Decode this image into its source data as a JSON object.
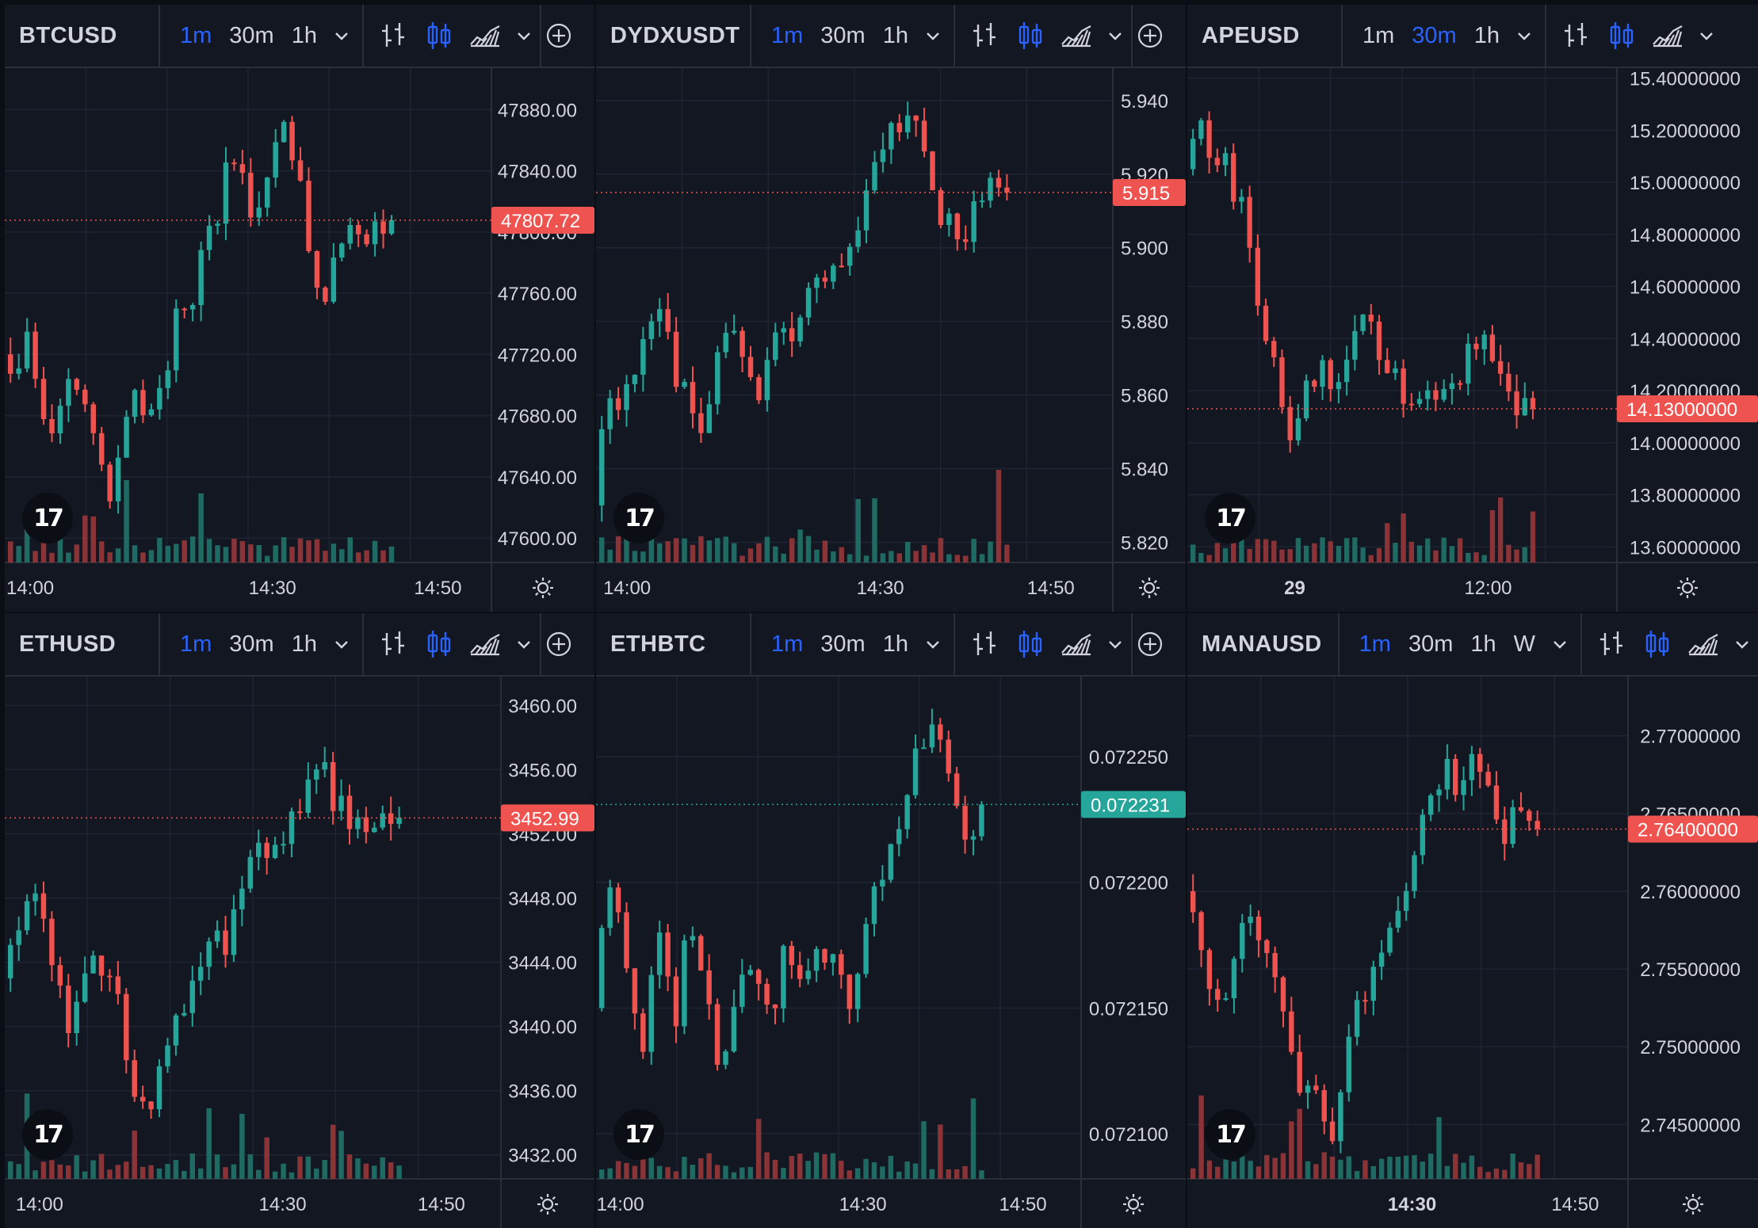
{
  "panels": [
    {
      "symbol": "BTCUSD",
      "timeframes": [
        "1m",
        "30m",
        "1h"
      ],
      "active_timeframe": "1m",
      "logo_text": "17",
      "chart_data": {
        "type": "candlestick",
        "last_price": "47807.72",
        "last_price_value": 47807.72,
        "last_price_color": "#ef5350",
        "ylim": [
          47584,
          47904
        ],
        "y_ticks": [
          {
            "label": "47880.00",
            "value": 47880
          },
          {
            "label": "47840.00",
            "value": 47840
          },
          {
            "label": "47800.00",
            "value": 47800
          },
          {
            "label": "47760.00",
            "value": 47760
          },
          {
            "label": "47720.00",
            "value": 47720
          },
          {
            "label": "47680.00",
            "value": 47680
          },
          {
            "label": "47640.00",
            "value": 47640
          },
          {
            "label": "47600.00",
            "value": 47600
          }
        ],
        "x_ticks": [
          {
            "label": "14:00",
            "pos": 0.0
          },
          {
            "label": "14:30",
            "pos": 0.55
          },
          {
            "label": "14:50",
            "pos": 0.89
          }
        ],
        "path": [
          47720,
          47695,
          47745,
          47680,
          47660,
          47710,
          47690,
          47650,
          47630,
          47680,
          47705,
          47670,
          47700,
          47760,
          47730,
          47790,
          47815,
          47850,
          47830,
          47800,
          47860,
          47875,
          47835,
          47780,
          47760,
          47790,
          47805,
          47790,
          47808,
          47807.72
        ]
      }
    },
    {
      "symbol": "DYDXUSDT",
      "timeframes": [
        "1m",
        "30m",
        "1h"
      ],
      "active_timeframe": "1m",
      "logo_text": "17",
      "chart_data": {
        "type": "candlestick",
        "last_price": "5.915",
        "last_price_value": 5.915,
        "last_price_color": "#ef5350",
        "ylim": [
          5.8145,
          5.9475
        ],
        "y_ticks": [
          {
            "label": "5.940",
            "value": 5.94
          },
          {
            "label": "5.920",
            "value": 5.92
          },
          {
            "label": "5.900",
            "value": 5.9
          },
          {
            "label": "5.880",
            "value": 5.88
          },
          {
            "label": "5.860",
            "value": 5.86
          },
          {
            "label": "5.840",
            "value": 5.84
          },
          {
            "label": "5.820",
            "value": 5.82
          }
        ],
        "x_ticks": [
          {
            "label": "14:00",
            "pos": 0.06
          },
          {
            "label": "14:30",
            "pos": 0.55
          },
          {
            "label": "14:50",
            "pos": 0.88
          }
        ],
        "path": [
          5.83,
          5.862,
          5.858,
          5.868,
          5.875,
          5.88,
          5.866,
          5.855,
          5.851,
          5.872,
          5.885,
          5.868,
          5.856,
          5.872,
          5.88,
          5.878,
          5.89,
          5.895,
          5.893,
          5.905,
          5.915,
          5.93,
          5.934,
          5.94,
          5.93,
          5.91,
          5.908,
          5.905,
          5.912,
          5.917,
          5.915
        ]
      }
    },
    {
      "symbol": "APEUSD",
      "timeframes": [
        "1m",
        "30m",
        "1h"
      ],
      "active_timeframe": "30m",
      "logo_text": "17",
      "chart_data": {
        "type": "candlestick",
        "last_price": "14.13000000",
        "last_price_value": 14.13,
        "last_price_color": "#ef5350",
        "ylim": [
          13.54,
          15.42
        ],
        "y_ticks": [
          {
            "label": "15.40000000",
            "value": 15.4
          },
          {
            "label": "15.20000000",
            "value": 15.2
          },
          {
            "label": "15.00000000",
            "value": 15.0
          },
          {
            "label": "14.80000000",
            "value": 14.8
          },
          {
            "label": "14.60000000",
            "value": 14.6
          },
          {
            "label": "14.40000000",
            "value": 14.4
          },
          {
            "label": "14.20000000",
            "value": 14.2
          },
          {
            "label": "14.00000000",
            "value": 14.0
          },
          {
            "label": "13.80000000",
            "value": 13.8
          },
          {
            "label": "13.60000000",
            "value": 13.6
          }
        ],
        "x_ticks": [
          {
            "label": "29",
            "pos": 0.25
          },
          {
            "label": "12:00",
            "pos": 0.7
          }
        ],
        "path": [
          15.05,
          15.2,
          15.15,
          15.05,
          14.95,
          14.7,
          14.4,
          14.2,
          14.0,
          14.2,
          14.3,
          14.15,
          14.3,
          14.45,
          14.4,
          14.35,
          14.2,
          14.1,
          14.25,
          14.2,
          14.25,
          14.3,
          14.4,
          14.35,
          14.2,
          14.15,
          14.13
        ]
      }
    },
    {
      "symbol": "ETHUSD",
      "timeframes": [
        "1m",
        "30m",
        "1h"
      ],
      "active_timeframe": "1m",
      "logo_text": "17",
      "chart_data": {
        "type": "candlestick",
        "last_price": "3452.99",
        "last_price_value": 3452.99,
        "last_price_color": "#ef5350",
        "ylim": [
          3430.5,
          3461.5
        ],
        "y_ticks": [
          {
            "label": "3460.00",
            "value": 3460
          },
          {
            "label": "3456.00",
            "value": 3456
          },
          {
            "label": "3452.00",
            "value": 3452
          },
          {
            "label": "3448.00",
            "value": 3448
          },
          {
            "label": "3444.00",
            "value": 3444
          },
          {
            "label": "3440.00",
            "value": 3440
          },
          {
            "label": "3436.00",
            "value": 3436
          },
          {
            "label": "3432.00",
            "value": 3432
          }
        ],
        "x_ticks": [
          {
            "label": "14:00",
            "pos": 0.07
          },
          {
            "label": "14:30",
            "pos": 0.56
          },
          {
            "label": "14:50",
            "pos": 0.88
          }
        ],
        "path": [
          3443,
          3446,
          3448,
          3445,
          3440,
          3442,
          3444,
          3443,
          3438,
          3434,
          3438,
          3441,
          3443,
          3446,
          3445,
          3449,
          3451,
          3450,
          3452,
          3455,
          3457,
          3454,
          3452.5,
          3453,
          3453.5,
          3452.99
        ]
      }
    },
    {
      "symbol": "ETHBTC",
      "timeframes": [
        "1m",
        "30m",
        "1h"
      ],
      "active_timeframe": "1m",
      "logo_text": "17",
      "chart_data": {
        "type": "candlestick",
        "last_price": "0.072231",
        "last_price_value": 0.072231,
        "last_price_color": "#26a69a",
        "ylim": [
          0.072082,
          0.07228
        ],
        "y_ticks": [
          {
            "label": "0.072250",
            "value": 0.07225
          },
          {
            "label": "0.072200",
            "value": 0.0722
          },
          {
            "label": "0.072150",
            "value": 0.07215
          },
          {
            "label": "0.072100",
            "value": 0.0721
          }
        ],
        "x_ticks": [
          {
            "label": "14:00",
            "pos": 0.05
          },
          {
            "label": "14:30",
            "pos": 0.55
          },
          {
            "label": "14:50",
            "pos": 0.88
          }
        ],
        "path": [
          0.07215,
          0.072205,
          0.07217,
          0.07213,
          0.07218,
          0.07214,
          0.07219,
          0.07215,
          0.07212,
          0.07216,
          0.07217,
          0.07215,
          0.072175,
          0.07216,
          0.07217,
          0.07218,
          0.072145,
          0.07219,
          0.0722,
          0.07223,
          0.07225,
          0.07226,
          0.07224,
          0.072215,
          0.072231
        ]
      }
    },
    {
      "symbol": "MANAUSD",
      "timeframes": [
        "1m",
        "30m",
        "1h",
        "W"
      ],
      "active_timeframe": "1m",
      "logo_text": "17",
      "chart_data": {
        "type": "candlestick",
        "last_price": "2.76400000",
        "last_price_value": 2.764,
        "last_price_color": "#ef5350",
        "ylim": [
          2.7415,
          2.7735
        ],
        "y_ticks": [
          {
            "label": "2.77000000",
            "value": 2.77
          },
          {
            "label": "2.76500000",
            "value": 2.765
          },
          {
            "label": "2.76000000",
            "value": 2.76
          },
          {
            "label": "2.75500000",
            "value": 2.755
          },
          {
            "label": "2.75000000",
            "value": 2.75
          },
          {
            "label": "2.74500000",
            "value": 2.745
          }
        ],
        "x_ticks": [
          {
            "label": "14:30",
            "pos": 0.51
          },
          {
            "label": "14:50",
            "pos": 0.88
          }
        ],
        "path": [
          2.76,
          2.756,
          2.752,
          2.755,
          2.759,
          2.756,
          2.752,
          2.748,
          2.747,
          2.744,
          2.749,
          2.753,
          2.756,
          2.758,
          2.76,
          2.765,
          2.768,
          2.767,
          2.769,
          2.766,
          2.764,
          2.765,
          2.764
        ]
      }
    }
  ]
}
